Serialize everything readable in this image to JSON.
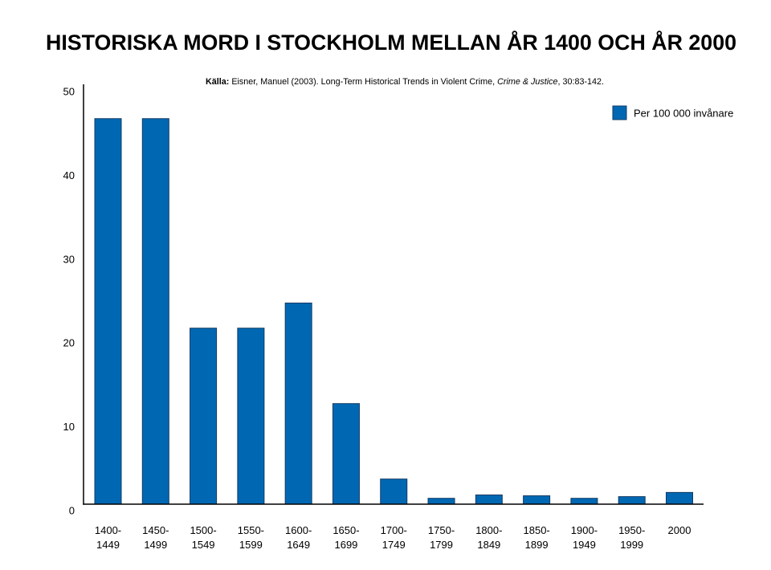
{
  "chart_data": {
    "type": "bar",
    "title": "HISTORISKA MORD I STOCKHOLM MELLAN ÅR 1400 OCH ÅR 2000",
    "source": {
      "label": "Källa:",
      "reference": "Eisner, Manuel (2003). Long-Term Historical Trends in Violent Crime,",
      "journal": "Crime & Justice",
      "pages": ", 30:83-142."
    },
    "categories": [
      [
        "1400-",
        "1449"
      ],
      [
        "1450-",
        "1499"
      ],
      [
        "1500-",
        "1549"
      ],
      [
        "1550-",
        "1599"
      ],
      [
        "1600-",
        "1649"
      ],
      [
        "1650-",
        "1699"
      ],
      [
        "1700-",
        "1749"
      ],
      [
        "1750-",
        "1799"
      ],
      [
        "1800-",
        "1849"
      ],
      [
        "1850-",
        "1899"
      ],
      [
        "1900-",
        "1949"
      ],
      [
        "1950-",
        "1999"
      ],
      [
        "2000"
      ]
    ],
    "series": [
      {
        "name": "Per 100 000 invånare",
        "values": [
          46,
          46,
          21,
          21,
          24,
          12,
          3,
          0.7,
          1.1,
          1.0,
          0.7,
          0.9,
          1.4
        ]
      }
    ],
    "yticks": [
      0,
      10,
      20,
      30,
      40,
      50
    ],
    "ylim": [
      0,
      50
    ],
    "grid": false,
    "legend": {
      "position": "top-right"
    },
    "colors": {
      "bar": "#0068b3",
      "bar_border": "#123a63",
      "axis": "#000000"
    }
  }
}
